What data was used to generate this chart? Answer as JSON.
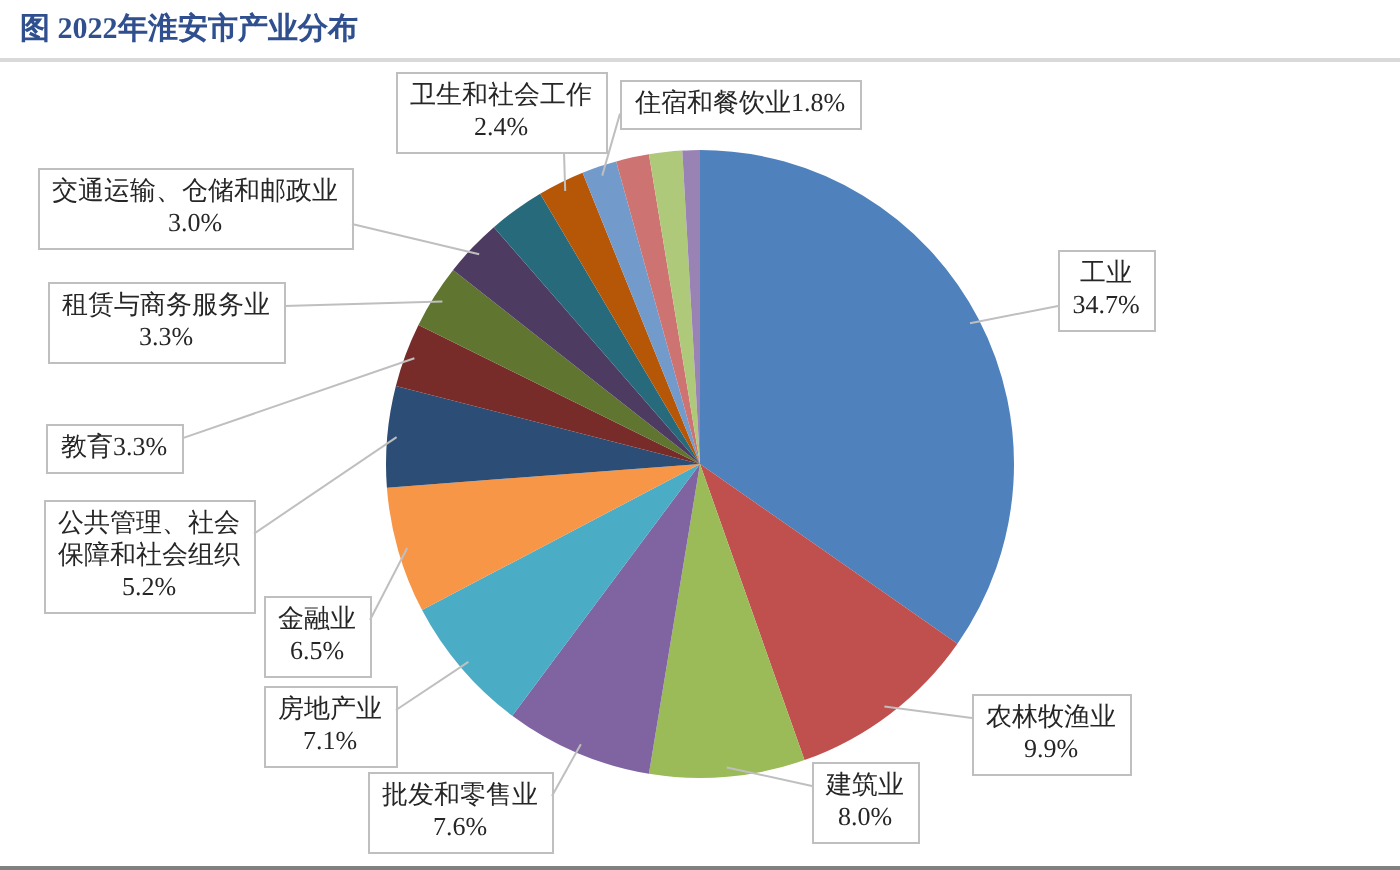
{
  "chart_data": {
    "type": "pie",
    "title": "图 2022年淮安市产业分布",
    "categories": [
      "工业",
      "农林牧渔业",
      "建筑业",
      "批发和零售业",
      "房地产业",
      "金融业",
      "公共管理、社会保障和社会组织",
      "教育",
      "租赁与商务服务业",
      "交通运输、仓储和邮政业",
      null,
      "卫生和社会工作",
      "住宿和餐饮业",
      null,
      null,
      null
    ],
    "values": [
      34.7,
      9.9,
      8.0,
      7.6,
      7.1,
      6.5,
      5.2,
      3.3,
      3.3,
      3.0,
      2.9,
      2.4,
      1.8,
      1.7,
      1.7,
      0.9
    ],
    "value_labels": [
      "34.7%",
      "9.9%",
      "8.0%",
      "7.6%",
      "7.1%",
      "6.5%",
      "5.2%",
      "3.3%",
      "3.3%",
      "3.0%",
      null,
      "2.4%",
      "1.8%",
      null,
      null,
      null
    ],
    "colors": [
      "#4f81bd",
      "#c0504d",
      "#9bbb59",
      "#8064a2",
      "#4bacc6",
      "#f79646",
      "#2c4d75",
      "#772c2a",
      "#5f7530",
      "#4d3b62",
      "#276a7c",
      "#b65708",
      "#729aca",
      "#cd7371",
      "#afc97a",
      "#9983b5"
    ]
  }
}
